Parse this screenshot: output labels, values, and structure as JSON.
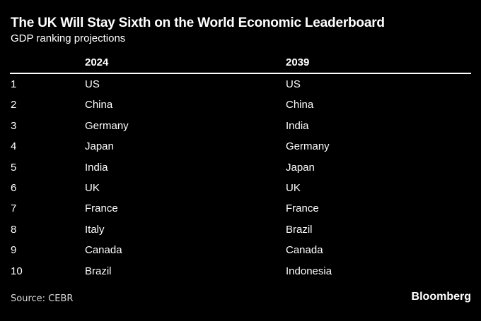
{
  "colors": {
    "background": "#000000",
    "text": "#ffffff",
    "rule": "#ffffff",
    "source_text": "#d9d9d9"
  },
  "chart_data": {
    "type": "table",
    "title": "The UK Will Stay Sixth on the World Economic Leaderboard",
    "subtitle": "GDP ranking projections",
    "columns": [
      "",
      "2024",
      "2039"
    ],
    "rows": [
      [
        "1",
        "US",
        "US"
      ],
      [
        "2",
        "China",
        "China"
      ],
      [
        "3",
        "Germany",
        "India"
      ],
      [
        "4",
        "Japan",
        "Germany"
      ],
      [
        "5",
        "India",
        "Japan"
      ],
      [
        "6",
        "UK",
        "UK"
      ],
      [
        "7",
        "France",
        "France"
      ],
      [
        "8",
        "Italy",
        "Brazil"
      ],
      [
        "9",
        "Canada",
        "Canada"
      ],
      [
        "10",
        "Brazil",
        "Indonesia"
      ]
    ],
    "source": "Source: CEBR",
    "brand": "Bloomberg",
    "layout": {
      "grid": "off",
      "legend": "none"
    }
  }
}
